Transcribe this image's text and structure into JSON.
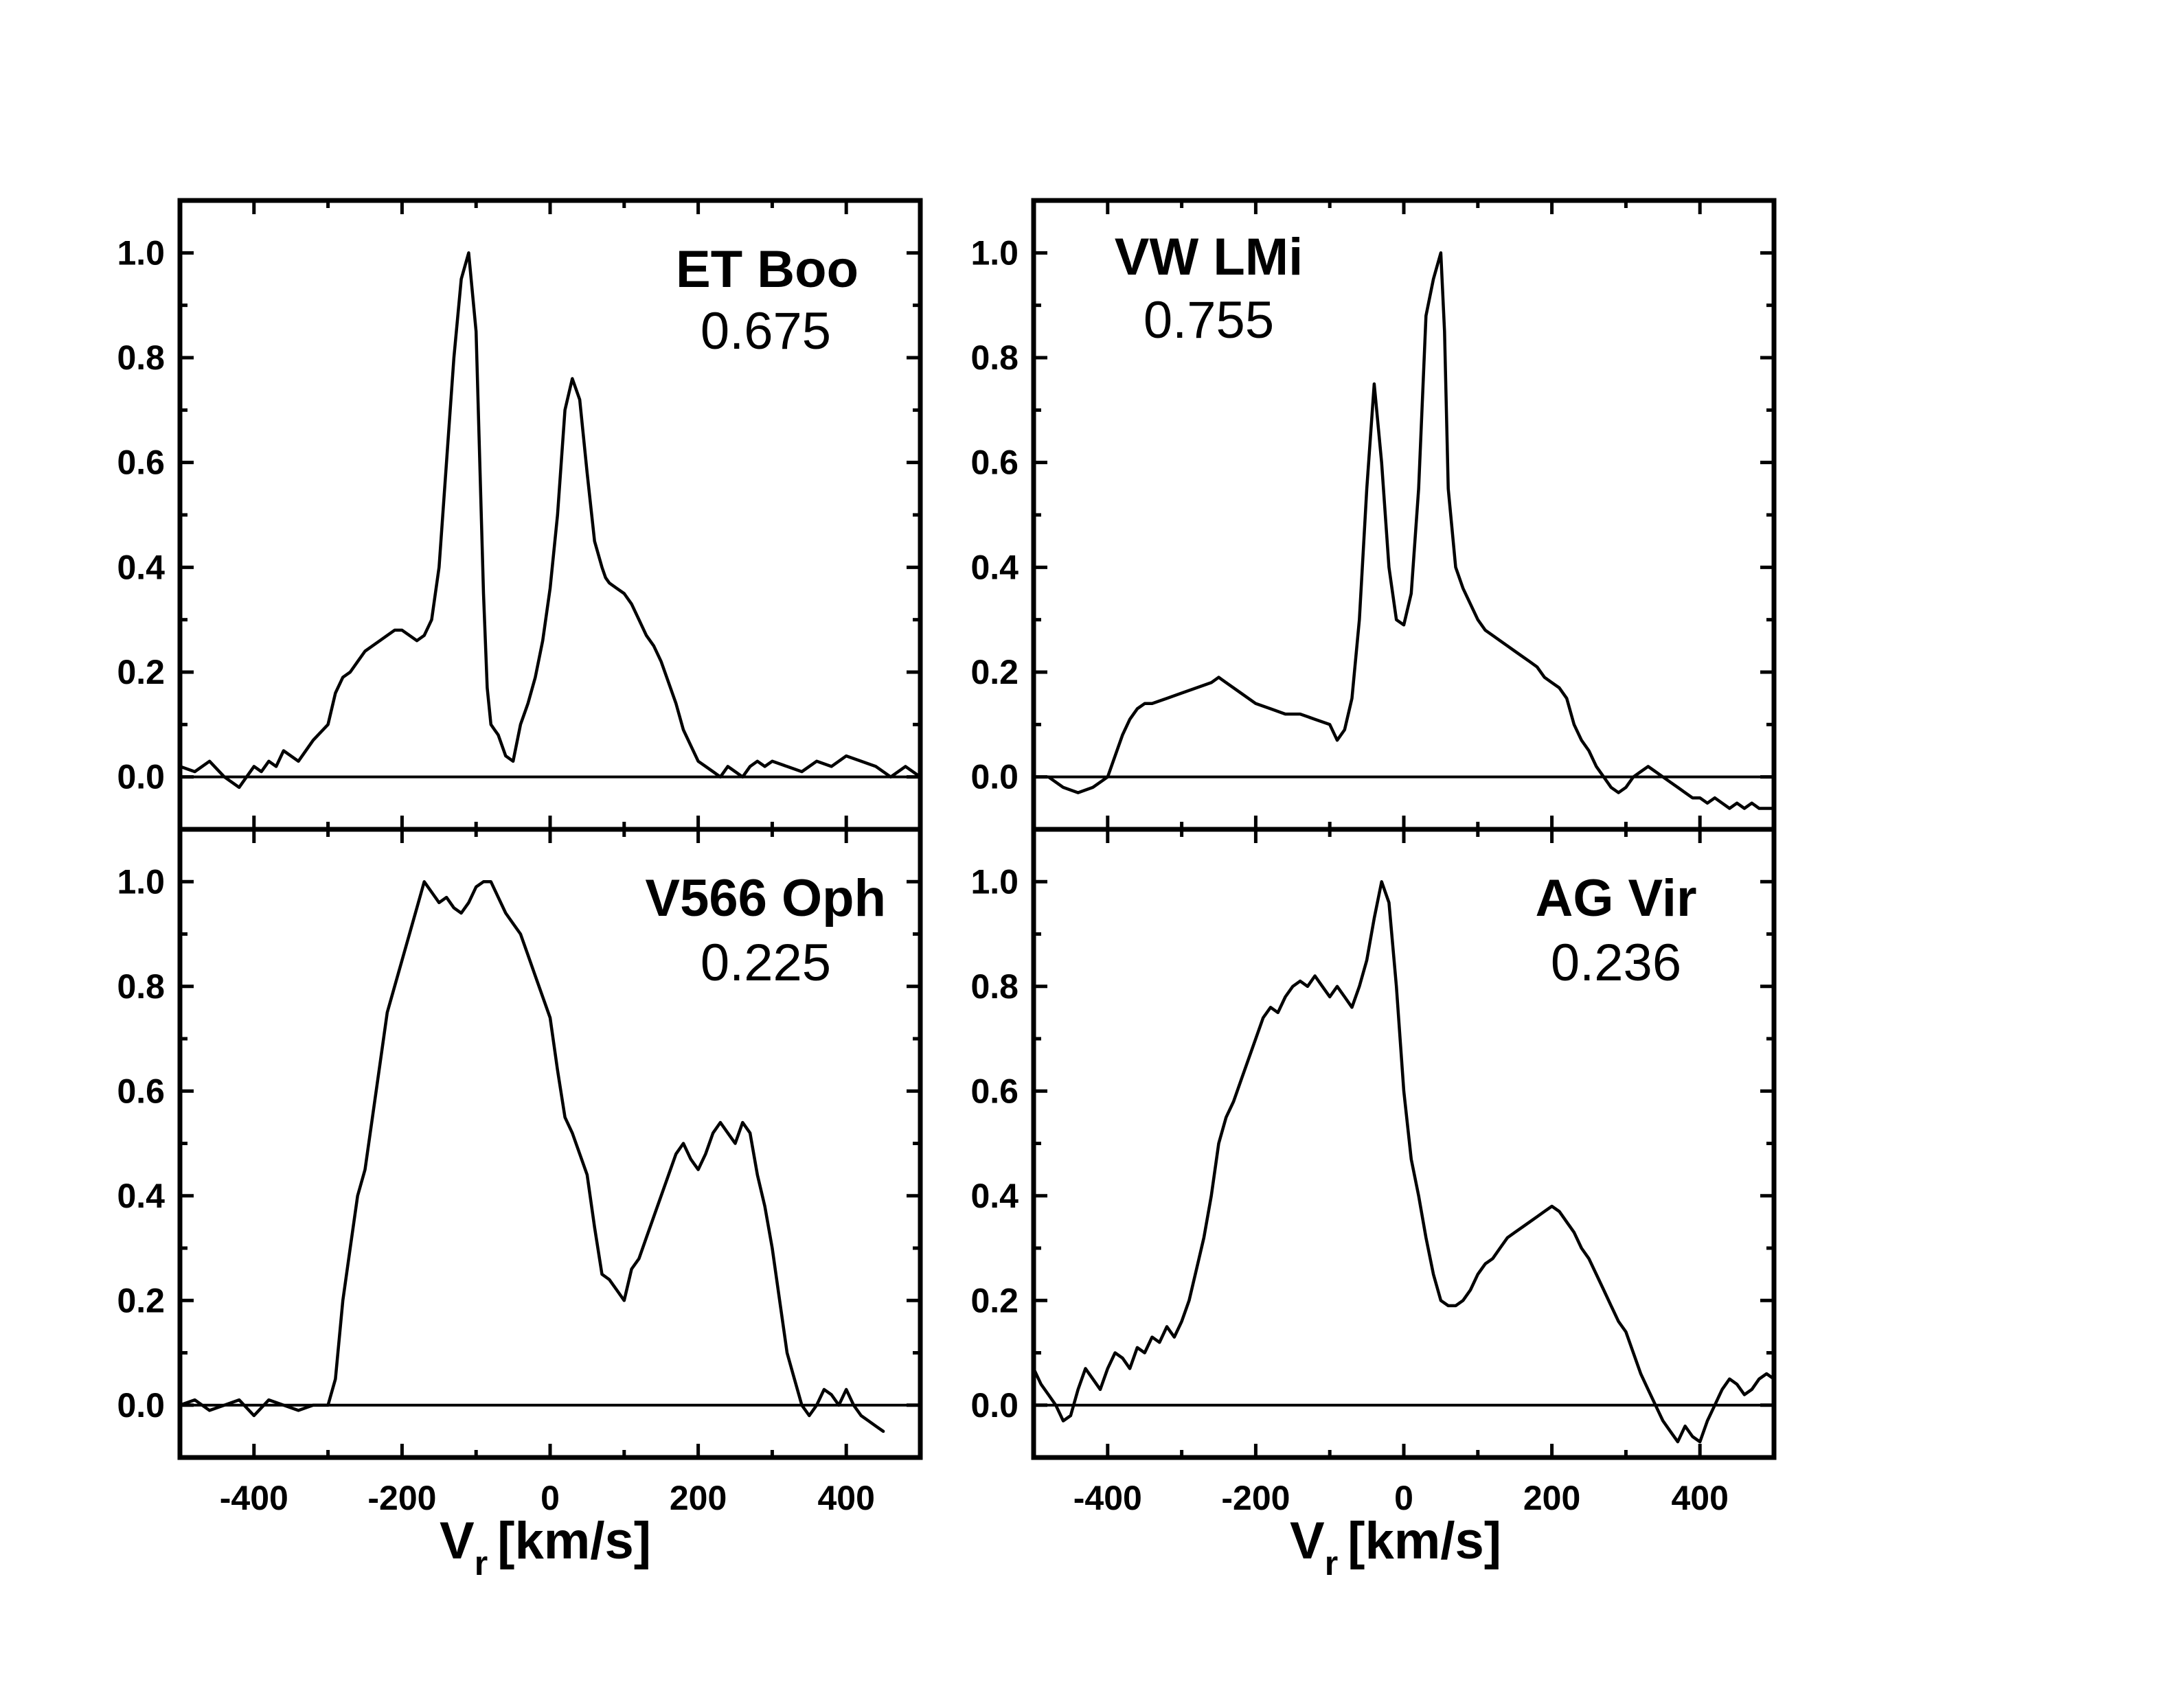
{
  "chart_data": [
    {
      "type": "line",
      "star": "ET Boo",
      "phase": "0.675",
      "xlim": [
        -500,
        500
      ],
      "ylim": [
        -0.1,
        1.1
      ],
      "x_ticks": [
        "-400",
        "-200",
        "0",
        "200",
        "400"
      ],
      "y_ticks": [
        "0.0",
        "0.2",
        "0.4",
        "0.6",
        "0.8",
        "1.0"
      ],
      "x": [
        -500,
        -480,
        -460,
        -440,
        -420,
        -400,
        -390,
        -380,
        -370,
        -360,
        -340,
        -320,
        -300,
        -290,
        -280,
        -270,
        -260,
        -250,
        -240,
        -230,
        -220,
        -210,
        -200,
        -190,
        -180,
        -170,
        -160,
        -150,
        -140,
        -130,
        -120,
        -110,
        -100,
        -95,
        -90,
        -85,
        -80,
        -75,
        -70,
        -60,
        -50,
        -40,
        -30,
        -20,
        -10,
        0,
        10,
        20,
        30,
        40,
        50,
        60,
        70,
        75,
        80,
        90,
        100,
        110,
        120,
        130,
        140,
        150,
        160,
        170,
        180,
        190,
        200,
        210,
        220,
        230,
        240,
        250,
        260,
        270,
        280,
        290,
        300,
        320,
        340,
        360,
        380,
        400,
        420,
        440,
        460,
        480,
        500
      ],
      "y": [
        0.02,
        0.01,
        0.03,
        0.0,
        -0.02,
        0.02,
        0.01,
        0.03,
        0.02,
        0.05,
        0.03,
        0.07,
        0.1,
        0.16,
        0.19,
        0.2,
        0.22,
        0.24,
        0.25,
        0.26,
        0.27,
        0.28,
        0.28,
        0.27,
        0.26,
        0.27,
        0.3,
        0.4,
        0.6,
        0.8,
        0.95,
        1.0,
        0.85,
        0.6,
        0.35,
        0.17,
        0.1,
        0.09,
        0.08,
        0.04,
        0.03,
        0.1,
        0.14,
        0.19,
        0.26,
        0.36,
        0.5,
        0.7,
        0.76,
        0.72,
        0.58,
        0.45,
        0.4,
        0.38,
        0.37,
        0.36,
        0.35,
        0.33,
        0.3,
        0.27,
        0.25,
        0.22,
        0.18,
        0.14,
        0.09,
        0.06,
        0.03,
        0.02,
        0.01,
        0.0,
        0.02,
        0.01,
        0.0,
        0.02,
        0.03,
        0.02,
        0.03,
        0.02,
        0.01,
        0.03,
        0.02,
        0.04,
        0.03,
        0.02,
        0.0,
        0.02,
        0.0
      ]
    },
    {
      "type": "line",
      "star": "VW LMi",
      "phase": "0.755",
      "xlim": [
        -500,
        500
      ],
      "ylim": [
        -0.1,
        1.1
      ],
      "x_ticks": [
        "-400",
        "-200",
        "0",
        "200",
        "400"
      ],
      "y_ticks": [
        "0.0",
        "0.2",
        "0.4",
        "0.6",
        "0.8",
        "1.0"
      ],
      "x": [
        -500,
        -480,
        -460,
        -440,
        -420,
        -400,
        -390,
        -380,
        -370,
        -360,
        -350,
        -340,
        -320,
        -300,
        -280,
        -260,
        -250,
        -240,
        -220,
        -200,
        -180,
        -160,
        -140,
        -120,
        -100,
        -90,
        -80,
        -70,
        -60,
        -50,
        -40,
        -30,
        -20,
        -10,
        0,
        10,
        20,
        30,
        40,
        50,
        55,
        60,
        70,
        80,
        90,
        100,
        110,
        120,
        130,
        140,
        150,
        160,
        170,
        180,
        190,
        200,
        210,
        220,
        230,
        240,
        250,
        260,
        270,
        280,
        290,
        300,
        310,
        320,
        330,
        340,
        350,
        360,
        370,
        380,
        390,
        400,
        410,
        420,
        430,
        440,
        450,
        460,
        470,
        480,
        490,
        500
      ],
      "y": [
        0.0,
        0.0,
        -0.02,
        -0.03,
        -0.02,
        0.0,
        0.04,
        0.08,
        0.11,
        0.13,
        0.14,
        0.14,
        0.15,
        0.16,
        0.17,
        0.18,
        0.19,
        0.18,
        0.16,
        0.14,
        0.13,
        0.12,
        0.12,
        0.11,
        0.1,
        0.07,
        0.09,
        0.15,
        0.3,
        0.55,
        0.75,
        0.6,
        0.4,
        0.3,
        0.29,
        0.35,
        0.55,
        0.88,
        0.95,
        1.0,
        0.85,
        0.55,
        0.4,
        0.36,
        0.33,
        0.3,
        0.28,
        0.27,
        0.26,
        0.25,
        0.24,
        0.23,
        0.22,
        0.21,
        0.19,
        0.18,
        0.17,
        0.15,
        0.1,
        0.07,
        0.05,
        0.02,
        0.0,
        -0.02,
        -0.03,
        -0.02,
        0.0,
        0.01,
        0.02,
        0.01,
        0.0,
        -0.01,
        -0.02,
        -0.03,
        -0.04,
        -0.04,
        -0.05,
        -0.04,
        -0.05,
        -0.06,
        -0.05,
        -0.06,
        -0.05,
        -0.06,
        -0.06,
        -0.06
      ]
    },
    {
      "type": "line",
      "star": "V566 Oph",
      "phase": "0.225",
      "xlim": [
        -500,
        500
      ],
      "ylim": [
        -0.1,
        1.1
      ],
      "x_ticks": [
        "-400",
        "-200",
        "0",
        "200",
        "400"
      ],
      "y_ticks": [
        "0.0",
        "0.2",
        "0.4",
        "0.6",
        "0.8",
        "1.0"
      ],
      "x": [
        -500,
        -480,
        -460,
        -440,
        -420,
        -400,
        -380,
        -360,
        -340,
        -320,
        -300,
        -290,
        -280,
        -270,
        -260,
        -250,
        -240,
        -230,
        -220,
        -210,
        -200,
        -190,
        -180,
        -170,
        -160,
        -150,
        -140,
        -130,
        -120,
        -110,
        -100,
        -90,
        -80,
        -70,
        -60,
        -50,
        -40,
        -30,
        -20,
        -10,
        0,
        10,
        20,
        30,
        40,
        50,
        60,
        70,
        80,
        90,
        100,
        110,
        120,
        130,
        140,
        150,
        160,
        170,
        180,
        190,
        200,
        210,
        220,
        230,
        240,
        250,
        260,
        270,
        280,
        290,
        300,
        310,
        320,
        330,
        340,
        350,
        360,
        370,
        380,
        390,
        400,
        410,
        420,
        430,
        440,
        450
      ],
      "y": [
        0.0,
        0.01,
        -0.01,
        0.0,
        0.01,
        -0.02,
        0.01,
        0.0,
        -0.01,
        0.0,
        0.0,
        0.05,
        0.2,
        0.3,
        0.4,
        0.45,
        0.55,
        0.65,
        0.75,
        0.8,
        0.85,
        0.9,
        0.95,
        1.0,
        0.98,
        0.96,
        0.97,
        0.95,
        0.94,
        0.96,
        0.99,
        1.0,
        1.0,
        0.97,
        0.94,
        0.92,
        0.9,
        0.86,
        0.82,
        0.78,
        0.74,
        0.64,
        0.55,
        0.52,
        0.48,
        0.44,
        0.34,
        0.25,
        0.24,
        0.22,
        0.2,
        0.26,
        0.28,
        0.32,
        0.36,
        0.4,
        0.44,
        0.48,
        0.5,
        0.47,
        0.45,
        0.48,
        0.52,
        0.54,
        0.52,
        0.5,
        0.54,
        0.52,
        0.44,
        0.38,
        0.3,
        0.2,
        0.1,
        0.05,
        0.0,
        -0.02,
        0.0,
        0.03,
        0.02,
        0.0,
        0.03,
        0.0,
        -0.02,
        -0.03,
        -0.04,
        -0.05
      ]
    },
    {
      "type": "line",
      "star": "AG Vir",
      "phase": "0.236",
      "xlim": [
        -500,
        500
      ],
      "ylim": [
        -0.1,
        1.1
      ],
      "x_ticks": [
        "-400",
        "-200",
        "0",
        "200",
        "400"
      ],
      "y_ticks": [
        "0.0",
        "0.2",
        "0.4",
        "0.6",
        "0.8",
        "1.0"
      ],
      "x": [
        -500,
        -490,
        -480,
        -470,
        -460,
        -450,
        -440,
        -430,
        -420,
        -410,
        -400,
        -390,
        -380,
        -370,
        -360,
        -350,
        -340,
        -330,
        -320,
        -310,
        -300,
        -290,
        -280,
        -270,
        -260,
        -250,
        -240,
        -230,
        -220,
        -210,
        -200,
        -190,
        -180,
        -170,
        -160,
        -150,
        -140,
        -130,
        -120,
        -110,
        -100,
        -90,
        -80,
        -70,
        -60,
        -50,
        -40,
        -30,
        -20,
        -10,
        0,
        10,
        20,
        30,
        40,
        50,
        60,
        70,
        80,
        90,
        100,
        110,
        120,
        130,
        140,
        150,
        160,
        170,
        180,
        190,
        200,
        210,
        220,
        230,
        240,
        250,
        260,
        270,
        280,
        290,
        300,
        310,
        320,
        330,
        340,
        350,
        360,
        370,
        380,
        390,
        400,
        410,
        420,
        430,
        440,
        450,
        460,
        470,
        480,
        490,
        500
      ],
      "y": [
        0.07,
        0.04,
        0.02,
        0.0,
        -0.03,
        -0.02,
        0.03,
        0.07,
        0.05,
        0.03,
        0.07,
        0.1,
        0.09,
        0.07,
        0.11,
        0.1,
        0.13,
        0.12,
        0.15,
        0.13,
        0.16,
        0.2,
        0.26,
        0.32,
        0.4,
        0.5,
        0.55,
        0.58,
        0.62,
        0.66,
        0.7,
        0.74,
        0.76,
        0.75,
        0.78,
        0.8,
        0.81,
        0.8,
        0.82,
        0.8,
        0.78,
        0.8,
        0.78,
        0.76,
        0.8,
        0.85,
        0.93,
        1.0,
        0.96,
        0.8,
        0.6,
        0.47,
        0.4,
        0.32,
        0.25,
        0.2,
        0.19,
        0.19,
        0.2,
        0.22,
        0.25,
        0.27,
        0.28,
        0.3,
        0.32,
        0.33,
        0.34,
        0.35,
        0.36,
        0.37,
        0.38,
        0.37,
        0.35,
        0.33,
        0.3,
        0.28,
        0.25,
        0.22,
        0.19,
        0.16,
        0.14,
        0.1,
        0.06,
        0.03,
        0.0,
        -0.03,
        -0.05,
        -0.07,
        -0.04,
        -0.06,
        -0.07,
        -0.03,
        0.0,
        0.03,
        0.05,
        0.04,
        0.02,
        0.03,
        0.05,
        0.06,
        0.05
      ]
    }
  ],
  "x_axis_label": {
    "main": "V",
    "subscript": "r",
    "units": "[km/s]"
  }
}
